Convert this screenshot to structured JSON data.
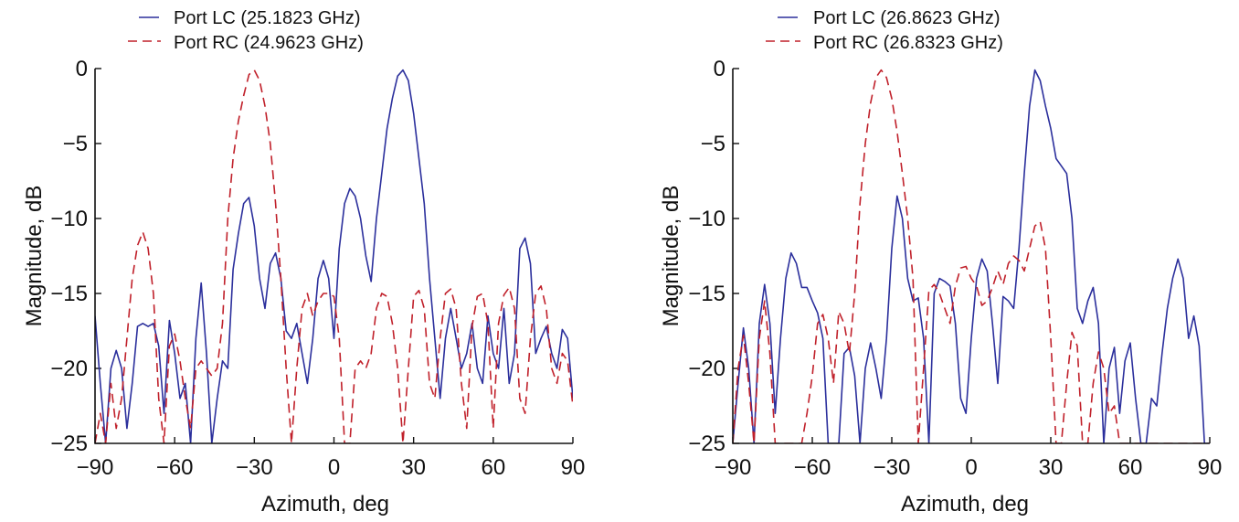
{
  "chart_data": [
    {
      "type": "line",
      "title": "",
      "xlabel": "Azimuth, deg",
      "ylabel": "Magnitude, dB",
      "xlim": [
        -90,
        90
      ],
      "ylim": [
        -25,
        0
      ],
      "xticks": [
        -90,
        -60,
        -30,
        0,
        30,
        60,
        90
      ],
      "yticks": [
        0,
        -5,
        -10,
        -15,
        -20,
        -25
      ],
      "grid": false,
      "legend_position": "top-left, above plot",
      "series": [
        {
          "name": "Port LC (25.1823 GHz)",
          "color": "#2b2f9c",
          "style": "solid",
          "x": [
            -90,
            -88,
            -86,
            -84,
            -82,
            -80,
            -78,
            -76,
            -74,
            -72,
            -70,
            -68,
            -66,
            -64,
            -62,
            -60,
            -58,
            -56,
            -54,
            -52,
            -50,
            -48,
            -46,
            -44,
            -42,
            -40,
            -38,
            -36,
            -34,
            -32,
            -30,
            -28,
            -26,
            -24,
            -22,
            -20,
            -18,
            -16,
            -14,
            -12,
            -10,
            -8,
            -6,
            -4,
            -2,
            0,
            2,
            4,
            6,
            8,
            10,
            12,
            14,
            16,
            18,
            20,
            22,
            24,
            26,
            28,
            30,
            32,
            34,
            36,
            38,
            40,
            42,
            44,
            46,
            48,
            50,
            52,
            54,
            56,
            58,
            60,
            62,
            64,
            66,
            68,
            70,
            72,
            74,
            76,
            78,
            80,
            82,
            84,
            86,
            88,
            90
          ],
          "y": [
            -16.5,
            -21,
            -25,
            -20,
            -18.8,
            -20,
            -24,
            -21,
            -17.2,
            -17.0,
            -17.2,
            -17.0,
            -18.5,
            -23,
            -16.8,
            -19,
            -22,
            -21,
            -25,
            -18,
            -14.3,
            -19,
            -25,
            -22,
            -19.5,
            -20,
            -13.4,
            -11,
            -9,
            -8.6,
            -10.5,
            -14,
            -16,
            -13,
            -12.3,
            -14,
            -17.5,
            -18,
            -17,
            -19,
            -21,
            -18,
            -14,
            -12.8,
            -14,
            -18,
            -12,
            -9,
            -8.0,
            -8.5,
            -10,
            -12.5,
            -14.2,
            -10,
            -7,
            -4,
            -2,
            -0.5,
            -0.1,
            -0.8,
            -3,
            -6,
            -9,
            -14,
            -18,
            -22,
            -18,
            -16,
            -18,
            -20,
            -19,
            -17,
            -20,
            -21,
            -16.5,
            -19,
            -20,
            -16,
            -21,
            -19,
            -12,
            -11.3,
            -13,
            -19,
            -18,
            -17.2,
            -19,
            -20,
            -17.4,
            -18,
            -22
          ]
        },
        {
          "name": "Port RC (24.9623 GHz)",
          "color": "#c0202a",
          "style": "dashed",
          "x": [
            -90,
            -88,
            -86,
            -84,
            -82,
            -80,
            -78,
            -76,
            -74,
            -72,
            -70,
            -68,
            -66,
            -64,
            -62,
            -60,
            -58,
            -56,
            -54,
            -52,
            -50,
            -48,
            -46,
            -44,
            -42,
            -40,
            -38,
            -36,
            -34,
            -32,
            -30,
            -28,
            -26,
            -24,
            -22,
            -20,
            -18,
            -16,
            -14,
            -12,
            -10,
            -8,
            -6,
            -4,
            -2,
            0,
            2,
            4,
            6,
            8,
            10,
            12,
            14,
            16,
            18,
            20,
            22,
            24,
            26,
            28,
            30,
            32,
            34,
            36,
            38,
            40,
            42,
            44,
            46,
            48,
            50,
            52,
            54,
            56,
            58,
            60,
            62,
            64,
            66,
            68,
            70,
            72,
            74,
            76,
            78,
            80,
            82,
            84,
            86,
            88,
            90
          ],
          "y": [
            -25,
            -23,
            -25,
            -21,
            -24,
            -22,
            -18,
            -14,
            -11.8,
            -10.9,
            -12,
            -15,
            -22,
            -25,
            -18.5,
            -17.7,
            -19.5,
            -22,
            -24,
            -20,
            -19.5,
            -20,
            -20.5,
            -20,
            -17,
            -10,
            -6,
            -3.5,
            -1.8,
            -0.4,
            -0.1,
            -0.8,
            -2.5,
            -5,
            -9,
            -14,
            -20,
            -25,
            -20,
            -16,
            -15,
            -16.5,
            -15.5,
            -15,
            -15,
            -15.2,
            -18,
            -25,
            -25,
            -20,
            -19.5,
            -20,
            -19,
            -16,
            -15,
            -15.2,
            -17,
            -20,
            -25,
            -20,
            -15.2,
            -14.8,
            -16,
            -21,
            -22,
            -18,
            -15,
            -14.7,
            -16,
            -21,
            -24,
            -17.2,
            -15.2,
            -15,
            -17,
            -24,
            -17,
            -15.1,
            -14.6,
            -16,
            -22,
            -23,
            -18,
            -15,
            -14.5,
            -16,
            -20,
            -21,
            -19,
            -19.5,
            -22.5
          ]
        }
      ]
    },
    {
      "type": "line",
      "title": "",
      "xlabel": "Azimuth, deg",
      "ylabel": "Magnitude, dB",
      "xlim": [
        -90,
        90
      ],
      "ylim": [
        -25,
        0
      ],
      "xticks": [
        -90,
        -60,
        -30,
        0,
        30,
        60,
        90
      ],
      "yticks": [
        0,
        -5,
        -10,
        -15,
        -20,
        -25
      ],
      "grid": false,
      "legend_position": "top-left, above plot",
      "series": [
        {
          "name": "Port LC (26.8623 GHz)",
          "color": "#2b2f9c",
          "style": "solid",
          "x": [
            -90,
            -88,
            -86,
            -84,
            -82,
            -80,
            -78,
            -76,
            -74,
            -72,
            -70,
            -68,
            -66,
            -64,
            -62,
            -60,
            -58,
            -56,
            -54,
            -52,
            -50,
            -48,
            -46,
            -44,
            -42,
            -40,
            -38,
            -36,
            -34,
            -32,
            -30,
            -28,
            -26,
            -24,
            -22,
            -20,
            -18,
            -16,
            -14,
            -12,
            -10,
            -8,
            -6,
            -4,
            -2,
            0,
            2,
            4,
            6,
            8,
            10,
            12,
            14,
            16,
            18,
            20,
            22,
            24,
            26,
            28,
            30,
            32,
            34,
            36,
            38,
            40,
            42,
            44,
            46,
            48,
            50,
            52,
            54,
            56,
            58,
            60,
            62,
            64,
            66,
            68,
            70,
            72,
            74,
            76,
            78,
            80,
            82,
            84,
            86,
            88,
            90
          ],
          "y": [
            -25,
            -21,
            -17.3,
            -20,
            -25,
            -17,
            -14.4,
            -17,
            -23,
            -18,
            -14,
            -12.3,
            -13,
            -14.6,
            -14.6,
            -15.5,
            -16.3,
            -18,
            -25,
            -25,
            -25,
            -19,
            -18.6,
            -20.5,
            -25,
            -20,
            -18.3,
            -20,
            -22,
            -18,
            -12,
            -8.5,
            -10,
            -14,
            -15.5,
            -15.3,
            -18,
            -25,
            -15,
            -14,
            -14.2,
            -14.5,
            -17,
            -22,
            -23,
            -18,
            -14,
            -12.7,
            -13.5,
            -17,
            -21,
            -15.2,
            -15.5,
            -16,
            -12,
            -7,
            -2.5,
            -0.1,
            -0.8,
            -2.5,
            -4,
            -6,
            -6.5,
            -7,
            -10,
            -16,
            -17,
            -15.5,
            -14.6,
            -17,
            -25,
            -20,
            -18.6,
            -23,
            -19.5,
            -18.3,
            -22,
            -25,
            -25,
            -22,
            -22.5,
            -19,
            -16,
            -14,
            -12.7,
            -14,
            -18,
            -16.5,
            -18.5,
            -25,
            -25
          ]
        },
        {
          "name": "Port RC (26.8323 GHz)",
          "color": "#c0202a",
          "style": "dashed",
          "x": [
            -90,
            -88,
            -86,
            -84,
            -82,
            -80,
            -78,
            -76,
            -74,
            -72,
            -70,
            -68,
            -66,
            -64,
            -62,
            -60,
            -58,
            -56,
            -54,
            -52,
            -50,
            -48,
            -46,
            -44,
            -42,
            -40,
            -38,
            -36,
            -34,
            -32,
            -30,
            -28,
            -26,
            -24,
            -22,
            -20,
            -18,
            -16,
            -14,
            -12,
            -10,
            -8,
            -6,
            -4,
            -2,
            0,
            2,
            4,
            6,
            8,
            10,
            12,
            14,
            16,
            18,
            20,
            22,
            24,
            26,
            28,
            30,
            32,
            34,
            36,
            38,
            40,
            42,
            44,
            46,
            48,
            50,
            52,
            54,
            56,
            58,
            60,
            62,
            64,
            66,
            68,
            70,
            72,
            74,
            76,
            78,
            80,
            82,
            84,
            86,
            88,
            90
          ],
          "y": [
            -25,
            -20,
            -17.8,
            -21,
            -25,
            -18,
            -15.5,
            -19,
            -25,
            -25,
            -25,
            -25,
            -25,
            -25,
            -23,
            -20.5,
            -17,
            -16.4,
            -18,
            -21,
            -16.2,
            -17,
            -19,
            -15,
            -9,
            -5,
            -2.3,
            -0.6,
            -0.1,
            -0.6,
            -2,
            -4.2,
            -7,
            -10,
            -14,
            -25,
            -20,
            -14.8,
            -14.4,
            -15,
            -16,
            -17,
            -14.5,
            -13.3,
            -13.2,
            -14,
            -14.5,
            -15.8,
            -15.5,
            -14.6,
            -13.5,
            -14.4,
            -13,
            -12.5,
            -12.8,
            -13.5,
            -12,
            -10.5,
            -10.2,
            -12,
            -18,
            -25,
            -25,
            -21,
            -17.6,
            -18.5,
            -25,
            -25,
            -21,
            -18.9,
            -20,
            -23,
            -22.5,
            -25,
            -25,
            -25,
            -25,
            -25,
            -25,
            -25,
            -25,
            -25,
            -25,
            -25,
            -25,
            -25,
            -25,
            -25,
            -25,
            -25,
            -25
          ]
        }
      ]
    }
  ]
}
